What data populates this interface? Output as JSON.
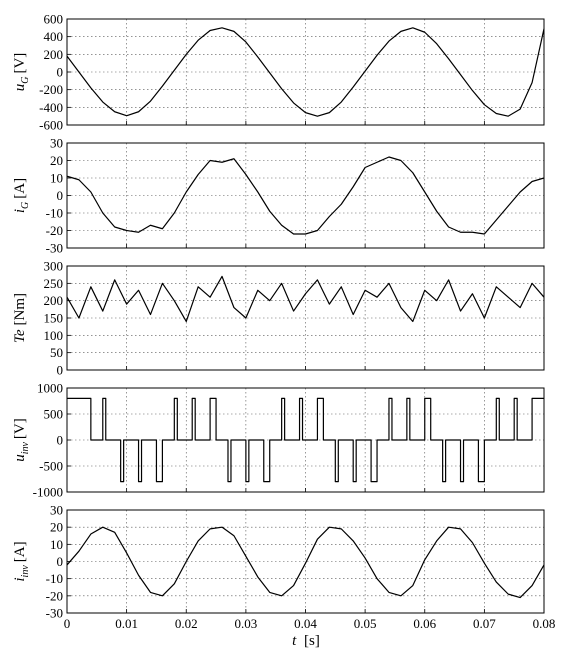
{
  "figure": {
    "xlabel": {
      "main": "t",
      "unit": "[s]"
    },
    "x_ticks": [
      "0",
      "0.01",
      "0.02",
      "0.03",
      "0.04",
      "0.05",
      "0.06",
      "0.07",
      "0.08"
    ]
  },
  "chart_data": [
    {
      "type": "line",
      "ylabel": {
        "main": "u",
        "sub": "G",
        "unit": "[V]"
      },
      "xlim": [
        0,
        0.08
      ],
      "ylim": [
        -600,
        600
      ],
      "yticks": [
        -600,
        -400,
        -200,
        0,
        200,
        400,
        600
      ],
      "grid": true,
      "series": [
        {
          "x": [
            0,
            0.002,
            0.004,
            0.006,
            0.008,
            0.01,
            0.012,
            0.014,
            0.016,
            0.018,
            0.02,
            0.022,
            0.024,
            0.026,
            0.028,
            0.03,
            0.032,
            0.034,
            0.036,
            0.038,
            0.04,
            0.042,
            0.044,
            0.046,
            0.048,
            0.05,
            0.052,
            0.054,
            0.056,
            0.058,
            0.06,
            0.062,
            0.064,
            0.066,
            0.068,
            0.07,
            0.072,
            0.074,
            0.076,
            0.078,
            0.08
          ],
          "y": [
            180,
            0,
            -180,
            -340,
            -450,
            -495,
            -450,
            -330,
            -160,
            20,
            200,
            360,
            470,
            500,
            460,
            340,
            170,
            -10,
            -190,
            -350,
            -460,
            -500,
            -460,
            -340,
            -170,
            10,
            190,
            350,
            460,
            500,
            450,
            320,
            150,
            -30,
            -210,
            -370,
            -470,
            -500,
            -420,
            -120,
            490
          ]
        }
      ]
    },
    {
      "type": "line",
      "ylabel": {
        "main": "i",
        "sub": "G",
        "unit": "[A]"
      },
      "xlim": [
        0,
        0.08
      ],
      "ylim": [
        -30,
        30
      ],
      "yticks": [
        -30,
        -20,
        -10,
        0,
        10,
        20,
        30
      ],
      "grid": true,
      "series": [
        {
          "x": [
            0,
            0.002,
            0.004,
            0.006,
            0.008,
            0.01,
            0.012,
            0.014,
            0.016,
            0.018,
            0.02,
            0.022,
            0.024,
            0.026,
            0.028,
            0.03,
            0.032,
            0.034,
            0.036,
            0.038,
            0.04,
            0.042,
            0.044,
            0.046,
            0.048,
            0.05,
            0.052,
            0.054,
            0.056,
            0.058,
            0.06,
            0.062,
            0.064,
            0.066,
            0.068,
            0.07,
            0.072,
            0.074,
            0.076,
            0.078,
            0.08
          ],
          "y": [
            11,
            9,
            2,
            -10,
            -18,
            -20,
            -21,
            -17,
            -19,
            -10,
            2,
            12,
            20,
            19,
            21,
            12,
            2,
            -9,
            -17,
            -22,
            -22,
            -20,
            -12,
            -5,
            5,
            16,
            19,
            22,
            20,
            13,
            2,
            -9,
            -18,
            -21,
            -21,
            -22,
            -14,
            -6,
            2,
            8,
            10
          ]
        }
      ]
    },
    {
      "type": "line",
      "ylabel": {
        "main": "Te",
        "sub": "",
        "unit": "[Nm]"
      },
      "xlim": [
        0,
        0.08
      ],
      "ylim": [
        0,
        300
      ],
      "yticks": [
        0,
        50,
        100,
        150,
        200,
        250,
        300
      ],
      "grid": true,
      "series": [
        {
          "x": [
            0,
            0.002,
            0.004,
            0.006,
            0.008,
            0.01,
            0.012,
            0.014,
            0.016,
            0.018,
            0.02,
            0.022,
            0.024,
            0.026,
            0.028,
            0.03,
            0.032,
            0.034,
            0.036,
            0.038,
            0.04,
            0.042,
            0.044,
            0.046,
            0.048,
            0.05,
            0.052,
            0.054,
            0.056,
            0.058,
            0.06,
            0.062,
            0.064,
            0.066,
            0.068,
            0.07,
            0.072,
            0.074,
            0.076,
            0.078,
            0.08
          ],
          "y": [
            210,
            150,
            240,
            170,
            260,
            190,
            230,
            160,
            250,
            200,
            140,
            240,
            210,
            270,
            180,
            150,
            230,
            200,
            250,
            170,
            220,
            260,
            190,
            240,
            160,
            230,
            210,
            250,
            180,
            140,
            230,
            200,
            260,
            170,
            220,
            150,
            240,
            210,
            180,
            250,
            210
          ]
        }
      ]
    },
    {
      "type": "line",
      "ylabel": {
        "main": "u",
        "sub": "inv",
        "unit": "[V]"
      },
      "xlim": [
        0,
        0.08
      ],
      "ylim": [
        -1000,
        1000
      ],
      "yticks": [
        -1000,
        -500,
        0,
        500,
        1000
      ],
      "grid": true,
      "series": [
        {
          "x": [
            0,
            0.004,
            0.004,
            0.006,
            0.006,
            0.0065,
            0.0065,
            0.009,
            0.009,
            0.0095,
            0.0095,
            0.012,
            0.012,
            0.0125,
            0.0125,
            0.015,
            0.015,
            0.016,
            0.016,
            0.018,
            0.018,
            0.0185,
            0.0185,
            0.021,
            0.021,
            0.0215,
            0.0215,
            0.024,
            0.024,
            0.025,
            0.025,
            0.027,
            0.027,
            0.0275,
            0.0275,
            0.03,
            0.03,
            0.0305,
            0.0305,
            0.033,
            0.033,
            0.034,
            0.034,
            0.036,
            0.036,
            0.0365,
            0.0365,
            0.039,
            0.039,
            0.0395,
            0.0395,
            0.042,
            0.042,
            0.043,
            0.043,
            0.045,
            0.045,
            0.0455,
            0.0455,
            0.048,
            0.048,
            0.0485,
            0.0485,
            0.051,
            0.051,
            0.052,
            0.052,
            0.054,
            0.054,
            0.0545,
            0.0545,
            0.057,
            0.057,
            0.0575,
            0.0575,
            0.06,
            0.06,
            0.061,
            0.061,
            0.063,
            0.063,
            0.0635,
            0.0635,
            0.066,
            0.066,
            0.0665,
            0.0665,
            0.069,
            0.069,
            0.07,
            0.07,
            0.072,
            0.072,
            0.0725,
            0.0725,
            0.075,
            0.075,
            0.0755,
            0.0755,
            0.078,
            0.078,
            0.08
          ],
          "y": [
            800,
            800,
            0,
            0,
            800,
            800,
            0,
            0,
            -800,
            -800,
            0,
            0,
            -800,
            -800,
            0,
            0,
            -800,
            -800,
            0,
            0,
            800,
            800,
            0,
            0,
            800,
            800,
            0,
            0,
            800,
            800,
            0,
            0,
            -800,
            -800,
            0,
            0,
            -800,
            -800,
            0,
            0,
            -800,
            -800,
            0,
            0,
            800,
            800,
            0,
            0,
            800,
            800,
            0,
            0,
            800,
            800,
            0,
            0,
            -800,
            -800,
            0,
            0,
            -800,
            -800,
            0,
            0,
            -800,
            -800,
            0,
            0,
            800,
            800,
            0,
            0,
            800,
            800,
            0,
            0,
            800,
            800,
            0,
            0,
            -800,
            -800,
            0,
            0,
            -800,
            -800,
            0,
            0,
            -800,
            -800,
            0,
            0,
            800,
            800,
            0,
            0,
            800,
            800,
            0,
            0,
            800,
            800
          ]
        }
      ]
    },
    {
      "type": "line",
      "ylabel": {
        "main": "i",
        "sub": "inv",
        "unit": "[A]"
      },
      "xlim": [
        0,
        0.08
      ],
      "ylim": [
        -30,
        30
      ],
      "yticks": [
        -30,
        -20,
        -10,
        0,
        10,
        20,
        30
      ],
      "grid": true,
      "series": [
        {
          "x": [
            0,
            0.002,
            0.004,
            0.006,
            0.008,
            0.01,
            0.012,
            0.014,
            0.016,
            0.018,
            0.02,
            0.022,
            0.024,
            0.026,
            0.028,
            0.03,
            0.032,
            0.034,
            0.036,
            0.038,
            0.04,
            0.042,
            0.044,
            0.046,
            0.048,
            0.05,
            0.052,
            0.054,
            0.056,
            0.058,
            0.06,
            0.062,
            0.064,
            0.066,
            0.068,
            0.07,
            0.072,
            0.074,
            0.076,
            0.078,
            0.08
          ],
          "y": [
            -2,
            6,
            16,
            20,
            17,
            5,
            -8,
            -18,
            -20,
            -13,
            0,
            12,
            19,
            20,
            15,
            3,
            -9,
            -18,
            -20,
            -14,
            -1,
            13,
            20,
            19,
            12,
            2,
            -10,
            -18,
            -20,
            -14,
            1,
            12,
            20,
            19,
            11,
            -1,
            -12,
            -19,
            -21,
            -14,
            -2
          ]
        }
      ]
    }
  ]
}
